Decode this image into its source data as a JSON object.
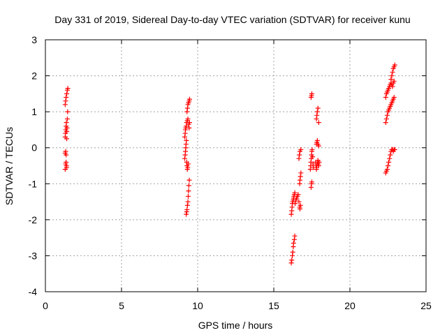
{
  "chart_data": {
    "type": "scatter",
    "title": "Day 331 of 2019, Sidereal Day-to-day VTEC variation (SDTVAR) for receiver kunu",
    "xlabel": "GPS time / hours",
    "ylabel": "SDTVAR / TECUs",
    "xlim": [
      0,
      25
    ],
    "ylim": [
      -4,
      3
    ],
    "xticks": [
      "0",
      "5",
      "10",
      "15",
      "20",
      "25"
    ],
    "yticks": [
      "-4",
      "-3",
      "-2",
      "-1",
      "0",
      "1",
      "2",
      "3"
    ],
    "grid": true,
    "marker": "plus",
    "color": "#ff0000",
    "series": [
      {
        "points": [
          [
            1.3,
            -0.6
          ],
          [
            1.33,
            -0.45
          ],
          [
            1.36,
            -0.4
          ],
          [
            1.38,
            -0.5
          ],
          [
            1.4,
            -0.55
          ],
          [
            1.3,
            -0.15
          ],
          [
            1.33,
            -0.1
          ],
          [
            1.36,
            -0.2
          ],
          [
            1.3,
            0.3
          ],
          [
            1.32,
            0.4
          ],
          [
            1.34,
            0.5
          ],
          [
            1.36,
            0.6
          ],
          [
            1.38,
            0.7
          ],
          [
            1.4,
            0.45
          ],
          [
            1.42,
            0.55
          ],
          [
            1.44,
            0.8
          ],
          [
            1.46,
            1.0
          ],
          [
            1.4,
            0.25
          ],
          [
            1.3,
            1.2
          ],
          [
            1.33,
            1.3
          ],
          [
            1.36,
            1.4
          ],
          [
            1.4,
            1.5
          ],
          [
            1.44,
            1.6
          ],
          [
            1.47,
            1.65
          ]
        ]
      },
      {
        "points": [
          [
            9.25,
            -1.85
          ],
          [
            9.28,
            -1.78
          ],
          [
            9.3,
            -1.72
          ],
          [
            9.33,
            -1.6
          ],
          [
            9.36,
            -1.5
          ],
          [
            9.38,
            -1.35
          ],
          [
            9.4,
            -1.2
          ],
          [
            9.42,
            -1.05
          ],
          [
            9.45,
            -0.9
          ],
          [
            9.15,
            -0.3
          ],
          [
            9.18,
            -0.2
          ],
          [
            9.2,
            -0.1
          ],
          [
            9.22,
            0.0
          ],
          [
            9.24,
            0.1
          ],
          [
            9.26,
            0.2
          ],
          [
            9.28,
            -0.4
          ],
          [
            9.3,
            -0.5
          ],
          [
            9.32,
            -0.6
          ],
          [
            9.35,
            -0.55
          ],
          [
            9.38,
            -0.45
          ],
          [
            9.15,
            0.3
          ],
          [
            9.18,
            0.4
          ],
          [
            9.2,
            0.5
          ],
          [
            9.22,
            0.55
          ],
          [
            9.25,
            0.6
          ],
          [
            9.28,
            0.7
          ],
          [
            9.32,
            0.75
          ],
          [
            9.36,
            0.8
          ],
          [
            9.4,
            0.65
          ],
          [
            9.44,
            0.55
          ],
          [
            9.47,
            0.7
          ],
          [
            9.3,
            1.0
          ],
          [
            9.33,
            1.1
          ],
          [
            9.36,
            1.2
          ],
          [
            9.4,
            1.25
          ],
          [
            9.44,
            1.3
          ],
          [
            9.47,
            1.35
          ]
        ]
      },
      {
        "points": [
          [
            16.15,
            -3.2
          ],
          [
            16.18,
            -3.12
          ],
          [
            16.22,
            -3.0
          ],
          [
            16.25,
            -2.9
          ],
          [
            16.28,
            -2.75
          ],
          [
            16.3,
            -2.65
          ],
          [
            16.35,
            -2.55
          ],
          [
            16.38,
            -2.45
          ],
          [
            16.15,
            -1.85
          ],
          [
            16.18,
            -1.75
          ],
          [
            16.2,
            -1.65
          ],
          [
            16.22,
            -1.55
          ],
          [
            16.25,
            -1.5
          ],
          [
            16.28,
            -1.45
          ],
          [
            16.3,
            -1.4
          ],
          [
            16.32,
            -1.35
          ],
          [
            16.35,
            -1.3
          ],
          [
            16.38,
            -1.25
          ],
          [
            16.4,
            -1.55
          ],
          [
            16.45,
            -1.45
          ],
          [
            16.5,
            -1.4
          ],
          [
            16.55,
            -1.35
          ],
          [
            16.6,
            -1.3
          ],
          [
            16.65,
            -1.5
          ],
          [
            16.7,
            -1.65
          ],
          [
            16.72,
            -1.7
          ],
          [
            16.75,
            -1.6
          ],
          [
            16.7,
            -1.0
          ],
          [
            16.72,
            -0.9
          ],
          [
            16.75,
            -0.8
          ],
          [
            16.78,
            -0.7
          ],
          [
            16.65,
            -0.3
          ],
          [
            16.68,
            -0.2
          ],
          [
            16.72,
            -0.1
          ],
          [
            16.78,
            -0.05
          ]
        ]
      },
      {
        "points": [
          [
            17.45,
            -1.1
          ],
          [
            17.48,
            -1.0
          ],
          [
            17.5,
            -0.95
          ],
          [
            17.4,
            -0.6
          ],
          [
            17.42,
            -0.5
          ],
          [
            17.44,
            -0.4
          ],
          [
            17.46,
            -0.3
          ],
          [
            17.48,
            -0.2
          ],
          [
            17.5,
            -0.1
          ],
          [
            17.52,
            -0.05
          ],
          [
            17.55,
            -0.25
          ],
          [
            17.58,
            -0.45
          ],
          [
            17.6,
            -0.55
          ],
          [
            17.45,
            1.4
          ],
          [
            17.48,
            1.45
          ],
          [
            17.5,
            1.5
          ],
          [
            17.75,
            -0.4
          ],
          [
            17.78,
            -0.5
          ],
          [
            17.8,
            -0.6
          ],
          [
            17.82,
            -0.55
          ],
          [
            17.85,
            -0.45
          ],
          [
            17.88,
            -0.4
          ],
          [
            17.9,
            -0.35
          ],
          [
            17.92,
            -0.45
          ],
          [
            17.95,
            -0.5
          ],
          [
            17.98,
            -0.4
          ],
          [
            17.8,
            0.1
          ],
          [
            17.83,
            0.15
          ],
          [
            17.86,
            0.2
          ],
          [
            17.9,
            0.1
          ],
          [
            17.95,
            0.05
          ],
          [
            17.8,
            0.8
          ],
          [
            17.83,
            0.9
          ],
          [
            17.86,
            1.0
          ],
          [
            17.9,
            1.1
          ],
          [
            17.95,
            0.7
          ]
        ]
      },
      {
        "points": [
          [
            22.35,
            -0.7
          ],
          [
            22.4,
            -0.65
          ],
          [
            22.45,
            -0.6
          ],
          [
            22.5,
            -0.5
          ],
          [
            22.55,
            -0.4
          ],
          [
            22.6,
            -0.3
          ],
          [
            22.65,
            -0.2
          ],
          [
            22.7,
            -0.1
          ],
          [
            22.75,
            -0.05
          ],
          [
            22.8,
            -0.05
          ],
          [
            22.85,
            -0.1
          ],
          [
            22.9,
            -0.05
          ],
          [
            22.95,
            -0.05
          ],
          [
            22.35,
            0.7
          ],
          [
            22.4,
            0.8
          ],
          [
            22.45,
            0.9
          ],
          [
            22.5,
            1.0
          ],
          [
            22.55,
            1.05
          ],
          [
            22.6,
            1.1
          ],
          [
            22.65,
            1.15
          ],
          [
            22.7,
            1.2
          ],
          [
            22.75,
            1.25
          ],
          [
            22.8,
            1.3
          ],
          [
            22.85,
            1.35
          ],
          [
            22.9,
            1.4
          ],
          [
            22.35,
            1.4
          ],
          [
            22.4,
            1.5
          ],
          [
            22.45,
            1.55
          ],
          [
            22.5,
            1.6
          ],
          [
            22.55,
            1.65
          ],
          [
            22.6,
            1.7
          ],
          [
            22.65,
            1.75
          ],
          [
            22.7,
            1.8
          ],
          [
            22.75,
            1.75
          ],
          [
            22.8,
            1.7
          ],
          [
            22.85,
            1.8
          ],
          [
            22.9,
            1.85
          ],
          [
            22.7,
            1.9
          ],
          [
            22.75,
            2.0
          ],
          [
            22.8,
            2.1
          ],
          [
            22.85,
            2.2
          ],
          [
            22.9,
            2.25
          ],
          [
            22.95,
            2.3
          ]
        ]
      }
    ]
  }
}
